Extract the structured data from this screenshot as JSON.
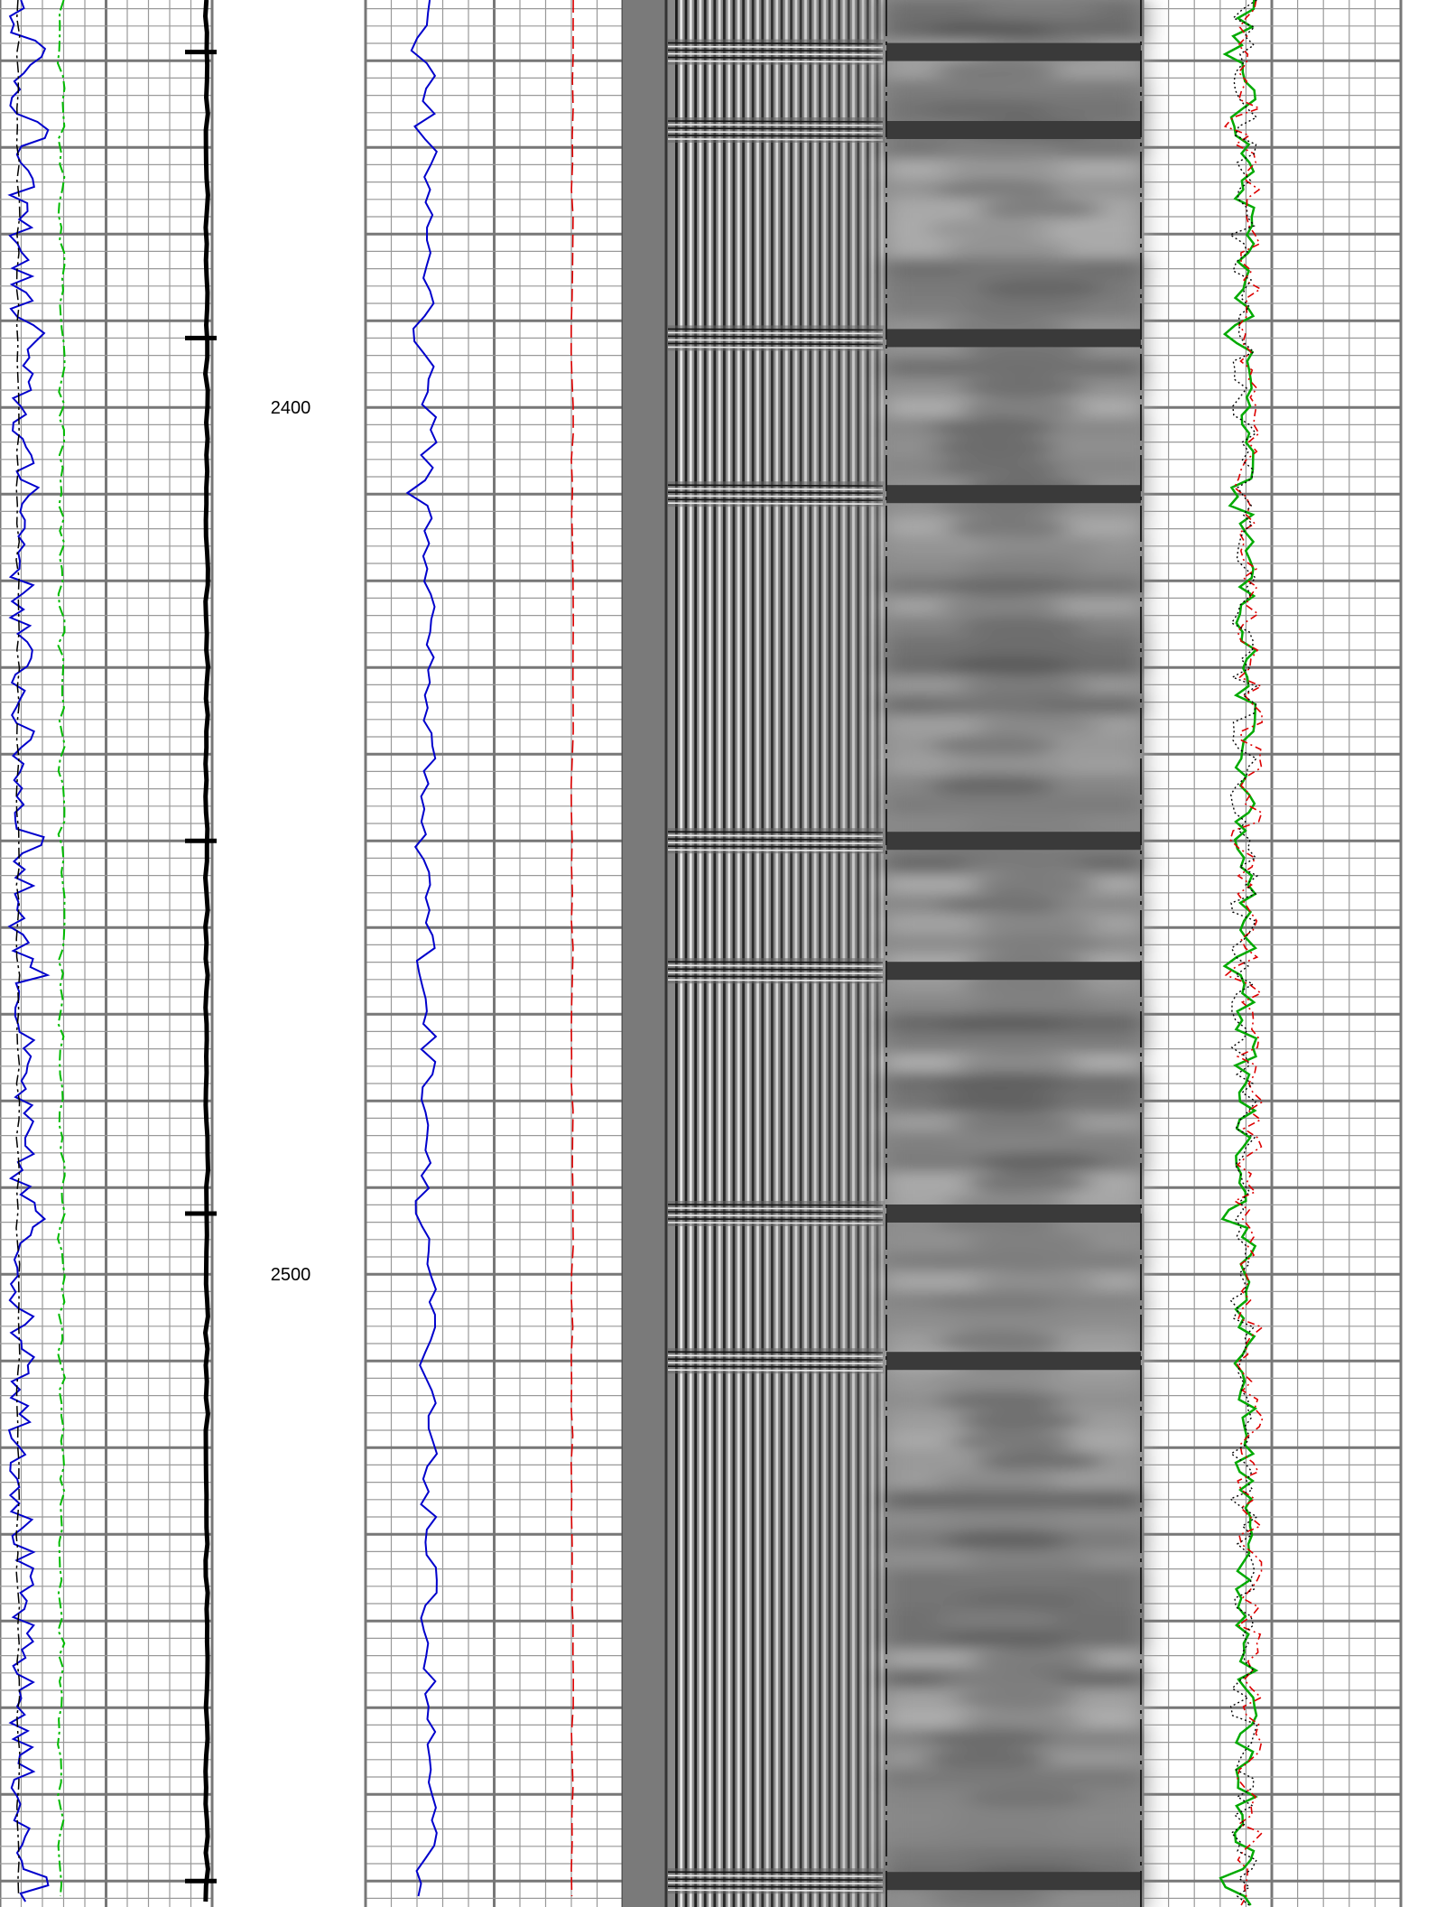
{
  "chart_data": {
    "type": "line",
    "title": "",
    "depth_axis": {
      "unit": "",
      "range": [
        2353,
        2573
      ],
      "labels": [
        {
          "depth": 2400,
          "text": "2400"
        },
        {
          "depth": 2500,
          "text": "2500"
        }
      ]
    },
    "tracks": [
      {
        "name": "",
        "scale": "linear",
        "curves": [
          {
            "name": "",
            "color": "#0000cc",
            "style": "solid"
          },
          {
            "name": "",
            "color": "#00bb00",
            "style": "dash-dot"
          },
          {
            "name": "",
            "color": "#000000",
            "style": "dash-dot"
          }
        ]
      },
      {
        "name": "",
        "scale": "linear",
        "curves": [
          {
            "name": "",
            "color": "#000000",
            "style": "solid-thick"
          }
        ]
      },
      {
        "name": "depth",
        "scale": "none"
      },
      {
        "name": "",
        "scale": "linear",
        "curves": [
          {
            "name": "",
            "color": "#0000cc",
            "style": "solid"
          },
          {
            "name": "",
            "color": "#dd0000",
            "style": "dash-dot"
          }
        ]
      },
      {
        "name": "",
        "scale": "image",
        "image_type": "wiggle-waveform"
      },
      {
        "name": "",
        "scale": "image",
        "image_type": "grayscale-amplitude"
      },
      {
        "name": "",
        "scale": "linear",
        "curves": [
          {
            "name": "",
            "color": "#00aa00",
            "style": "solid"
          },
          {
            "name": "",
            "color": "#dd0000",
            "style": "dash-dot"
          },
          {
            "name": "",
            "color": "#000000",
            "style": "dotted"
          }
        ]
      }
    ],
    "bed_boundaries": [
      2359,
      2368,
      2392,
      2410,
      2450,
      2465,
      2493,
      2510,
      2570
    ],
    "grid": true
  }
}
